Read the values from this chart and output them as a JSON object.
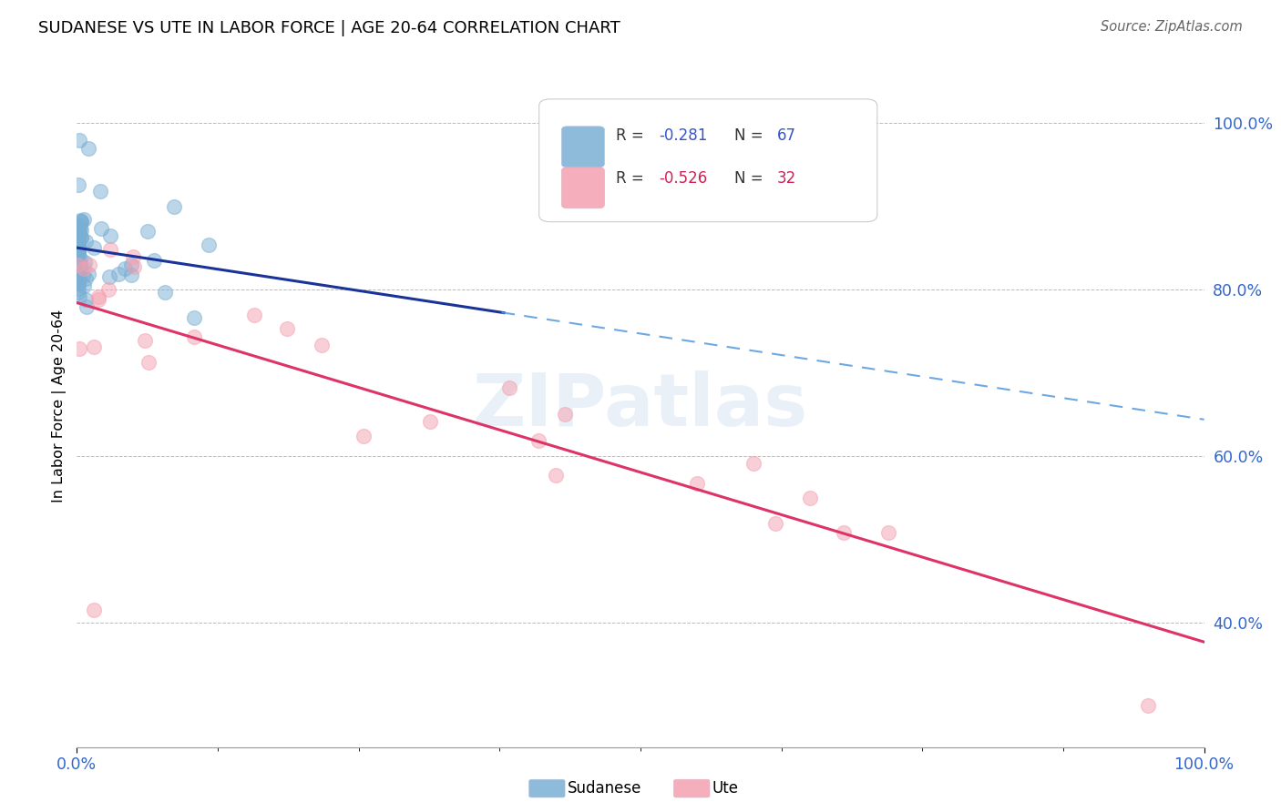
{
  "title": "SUDANESE VS UTE IN LABOR FORCE | AGE 20-64 CORRELATION CHART",
  "source": "Source: ZipAtlas.com",
  "ylabel": "In Labor Force | Age 20-64",
  "ytick_labels": [
    "100.0%",
    "80.0%",
    "60.0%",
    "40.0%"
  ],
  "ytick_values": [
    1.0,
    0.8,
    0.6,
    0.4
  ],
  "legend_blue_r": "R = -0.281",
  "legend_blue_n": "N = 67",
  "legend_pink_r": "R = -0.526",
  "legend_pink_n": "N = 32",
  "legend_blue_label": "Sudanese",
  "legend_pink_label": "Ute",
  "blue_color": "#7aafd4",
  "pink_color": "#f4a0b0",
  "blue_line_color": "#1a3399",
  "pink_line_color": "#dd3366",
  "blue_dashed_color": "#5599dd",
  "watermark": "ZIPatlas",
  "blue_r_color": "#3355cc",
  "pink_r_color": "#cc2255",
  "blue_n_color": "#3355cc",
  "pink_n_color": "#cc2255"
}
